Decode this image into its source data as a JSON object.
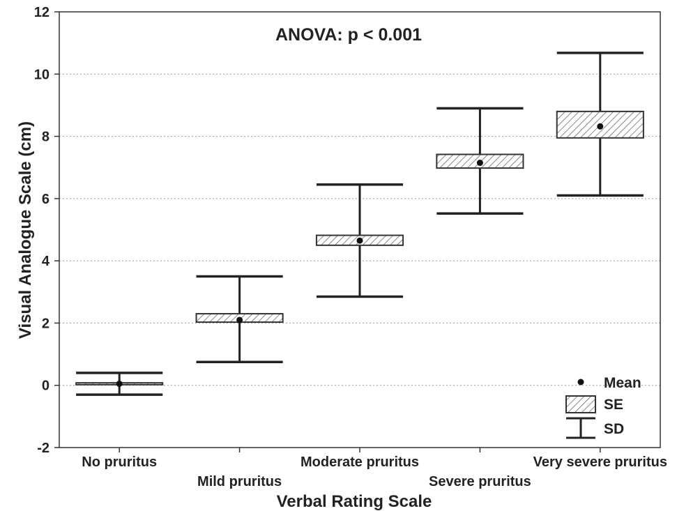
{
  "chart_data": {
    "type": "box",
    "title": "",
    "annotation": "ANOVA: p < 0.001",
    "xlabel": "Verbal Rating Scale",
    "ylabel": "Visual Analogue Scale (cm)",
    "ylim": [
      -2,
      12
    ],
    "yticks": [
      -2,
      0,
      2,
      4,
      6,
      8,
      10,
      12
    ],
    "grid": "horizontal dotted",
    "categories": [
      "No pruritus",
      "Mild pruritus",
      "Moderate pruritus",
      "Severe pruritus",
      "Very severe pruritus"
    ],
    "series": [
      {
        "mean": 0.05,
        "se_low": 0.02,
        "se_high": 0.08,
        "sd_low": -0.3,
        "sd_high": 0.4
      },
      {
        "mean": 2.1,
        "se_low": 2.03,
        "se_high": 2.3,
        "sd_low": 0.75,
        "sd_high": 3.5
      },
      {
        "mean": 4.65,
        "se_low": 4.5,
        "se_high": 4.82,
        "sd_low": 2.85,
        "sd_high": 6.45
      },
      {
        "mean": 7.15,
        "se_low": 6.98,
        "se_high": 7.42,
        "sd_low": 5.52,
        "sd_high": 8.9
      },
      {
        "mean": 8.32,
        "se_low": 7.95,
        "se_high": 8.8,
        "sd_low": 6.1,
        "sd_high": 10.68
      }
    ],
    "legend": {
      "position": "bottom-right",
      "items": [
        {
          "symbol": "dot",
          "label": "Mean"
        },
        {
          "symbol": "hatched-box",
          "label": "SE"
        },
        {
          "symbol": "whisker",
          "label": "SD"
        }
      ]
    }
  }
}
